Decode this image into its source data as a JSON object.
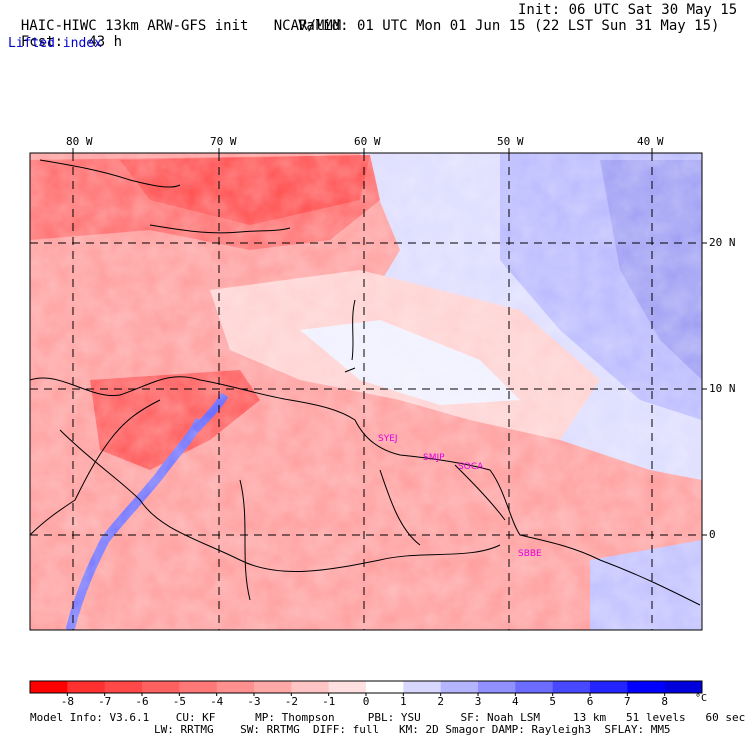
{
  "header": {
    "model_title": "HAIC-HIWC 13km ARW-GFS init",
    "org": "NCAR/MMM",
    "init_label": "Init: 06 UTC Sat 30 May 15",
    "fcst_label": "Fcst:",
    "fcst_value": "43 h",
    "valid_label": "Valid: 01 UTC Mon 01 Jun 15 (22 LST Sun 31 May 15)",
    "field_name": "Lifted index"
  },
  "map": {
    "lon_labels": [
      "80 W",
      "70 W",
      "60 W",
      "50 W",
      "40 W"
    ],
    "lat_labels": [
      "20 N",
      "10 N",
      "0"
    ],
    "stations": [
      "SYEJ",
      "SMJP",
      "SOCA",
      "SBBE"
    ],
    "station_color": "#e000e0"
  },
  "colorbar": {
    "tick_labels": [
      "-8",
      "-7",
      "-6",
      "-5",
      "-4",
      "-3",
      "-2",
      "-1",
      "0",
      "1",
      "2",
      "3",
      "4",
      "5",
      "6",
      "7",
      "8"
    ],
    "unit": "°C",
    "colors": [
      "#ff0000",
      "#ff3030",
      "#ff4848",
      "#ff6060",
      "#ff7878",
      "#ff9090",
      "#ffa8a8",
      "#ffc4c4",
      "#ffe0e0",
      "#ffffff",
      "#d8d8ff",
      "#b4b4ff",
      "#9090ff",
      "#6c6cff",
      "#4848ff",
      "#2424ff",
      "#0000ff",
      "#0000dd"
    ]
  },
  "footer": {
    "line1": "Model Info: V3.6.1    CU: KF      MP: Thompson     PBL: YSU      SF: Noah LSM     13 km   51 levels   60 sec",
    "line2": "LW: RRTMG    SW: RRTMG  DIFF: full   KM: 2D Smagor DAMP: Rayleigh3  SFLAY: MM5"
  }
}
